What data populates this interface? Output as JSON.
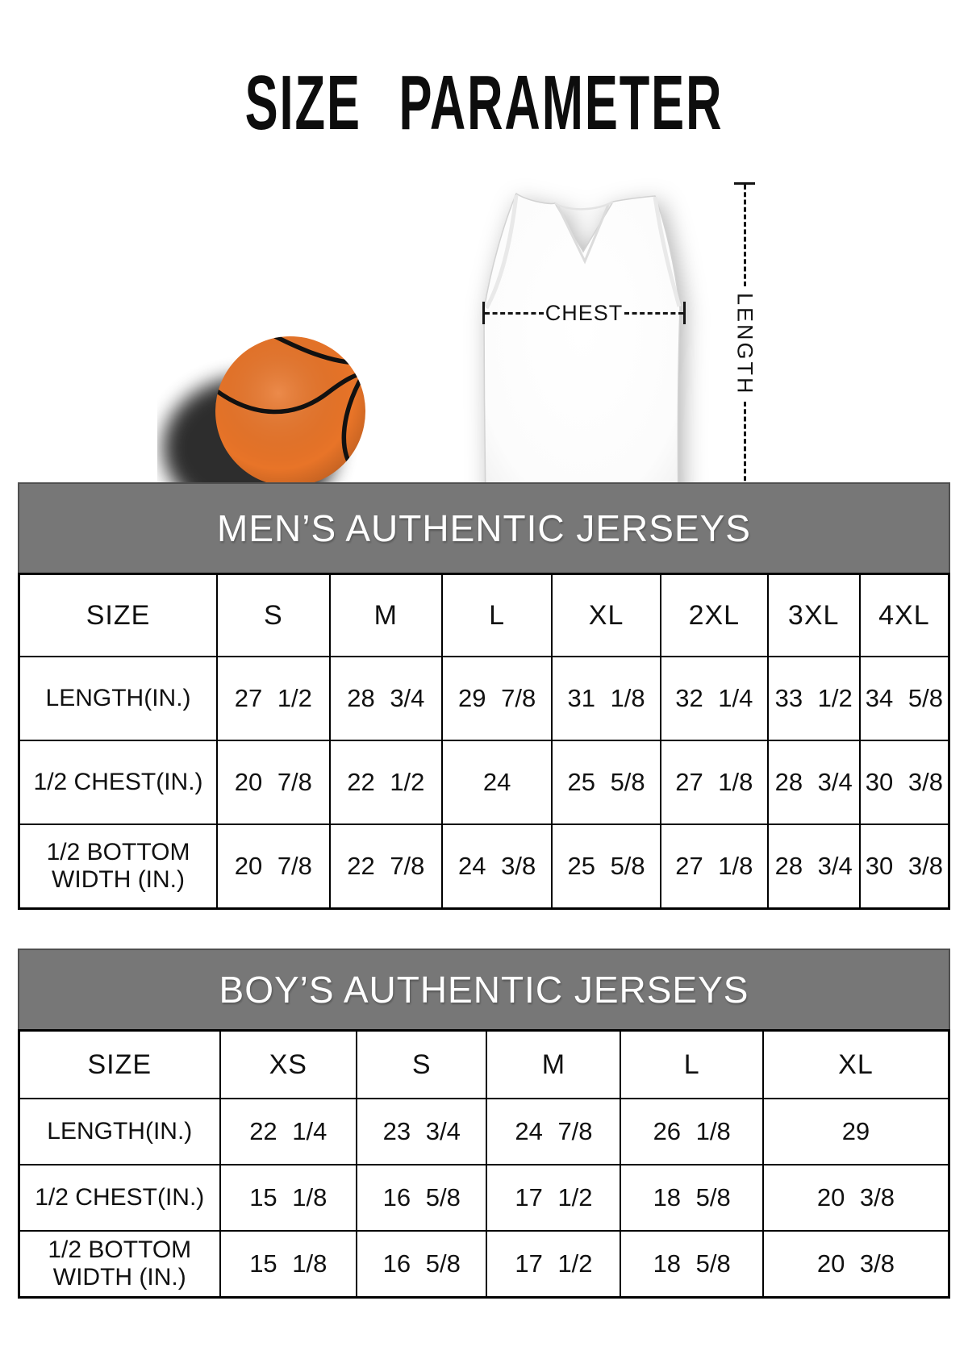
{
  "title": "SIZE PARAMETER",
  "illustration": {
    "chest_label": "CHEST",
    "length_label": "LENGTH"
  },
  "colors": {
    "table_header_bg": "#777777",
    "table_header_text": "#ffffff",
    "ball_fill": "#e87428",
    "ball_seam": "#111111"
  },
  "chart_data": [
    {
      "type": "table",
      "title": "MEN’S AUTHENTIC JERSEYS",
      "columns": [
        "SIZE",
        "S",
        "M",
        "L",
        "XL",
        "2XL",
        "3XL",
        "4XL"
      ],
      "col_widths_pct": [
        21.3,
        12.1,
        12.1,
        11.8,
        11.7,
        11.5,
        9.9,
        9.6
      ],
      "rows": [
        {
          "label": "LENGTH(IN.)",
          "values": [
            "27 1/2",
            "28 3/4",
            "29 7/8",
            "31 1/8",
            "32 1/4",
            "33 1/2",
            "34 5/8"
          ]
        },
        {
          "label": "1/2 CHEST(IN.)",
          "values": [
            "20 7/8",
            "22 1/2",
            "24",
            "25 5/8",
            "27 1/8",
            "28 3/4",
            "30 3/8"
          ]
        },
        {
          "label": "1/2 BOTTOM WIDTH (IN.)",
          "values": [
            "20 7/8",
            "22 7/8",
            "24 3/8",
            "25 5/8",
            "27 1/8",
            "28 3/4",
            "30 3/8"
          ]
        }
      ]
    },
    {
      "type": "table",
      "title": "BOY’S AUTHENTIC JERSEYS",
      "columns": [
        "SIZE",
        "XS",
        "S",
        "M",
        "L",
        "XL"
      ],
      "col_widths_pct": [
        21.6,
        14.7,
        14.0,
        14.4,
        15.3,
        20.0
      ],
      "rows": [
        {
          "label": "LENGTH(IN.)",
          "values": [
            "22 1/4",
            "23 3/4",
            "24 7/8",
            "26 1/8",
            "29"
          ]
        },
        {
          "label": "1/2 CHEST(IN.)",
          "values": [
            "15 1/8",
            "16 5/8",
            "17 1/2",
            "18 5/8",
            "20 3/8"
          ]
        },
        {
          "label": "1/2 BOTTOM WIDTH (IN.)",
          "values": [
            "15 1/8",
            "16 5/8",
            "17 1/2",
            "18 5/8",
            "20 3/8"
          ]
        }
      ]
    }
  ]
}
